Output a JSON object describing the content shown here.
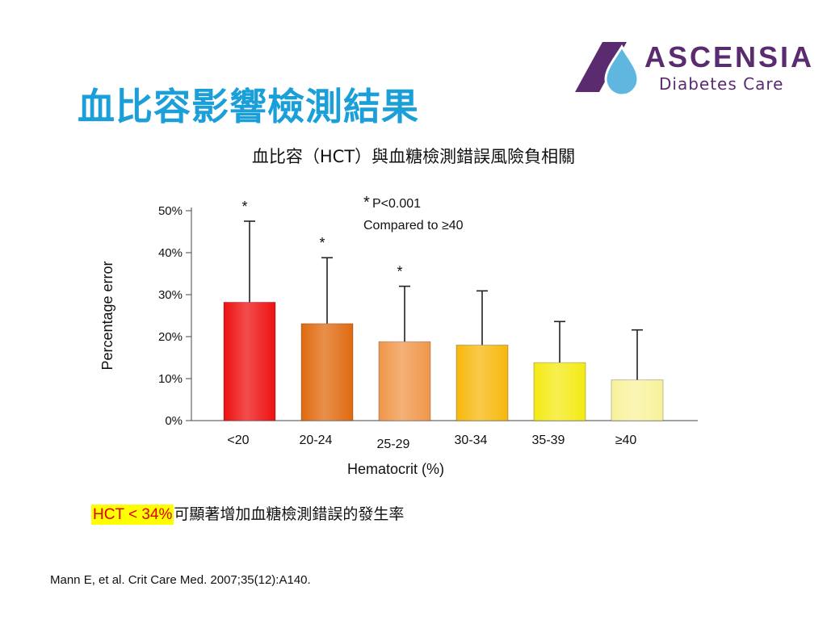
{
  "slide": {
    "title": "血比容影響檢測結果",
    "chart_title": "血比容（HCT）與血糖檢測錯誤風險負相關",
    "highlight_red": "HCT < 34%",
    "highlight_rest": "可顯著增加血糖檢測錯誤的發生率",
    "citation": "Mann E, et al. Crit Care Med. 2007;35(12):A140."
  },
  "logo": {
    "brand": "ASCENSIA",
    "sub": "Diabetes Care",
    "colors": {
      "purple": "#5b2b6f",
      "drop": "#5fb7e0"
    }
  },
  "chart_data": {
    "type": "bar",
    "title": "",
    "xlabel": "Hematocrit (%)",
    "ylabel": "Percentage error",
    "ylim": [
      0,
      50
    ],
    "yticks": [
      "0%",
      "10%",
      "20%",
      "30%",
      "40%",
      "50%"
    ],
    "categories": [
      "<20",
      "20-24",
      "25-29",
      "30-34",
      "35-39",
      "≥40"
    ],
    "values": [
      28.2,
      23.1,
      18.8,
      18,
      13.8,
      9.7
    ],
    "error_upper": [
      47.5,
      38.8,
      32,
      30.9,
      23.6,
      21.6
    ],
    "significant": [
      true,
      true,
      true,
      false,
      false,
      false
    ],
    "annotation": {
      "star": "*",
      "p_text": "P<0.001",
      "compared": "Compared to ≥40"
    },
    "colors": [
      "#ee1111",
      "#e06a10",
      "#f0964a",
      "#f7b80d",
      "#f4ea14",
      "#f8f29c"
    ],
    "grid": false
  }
}
